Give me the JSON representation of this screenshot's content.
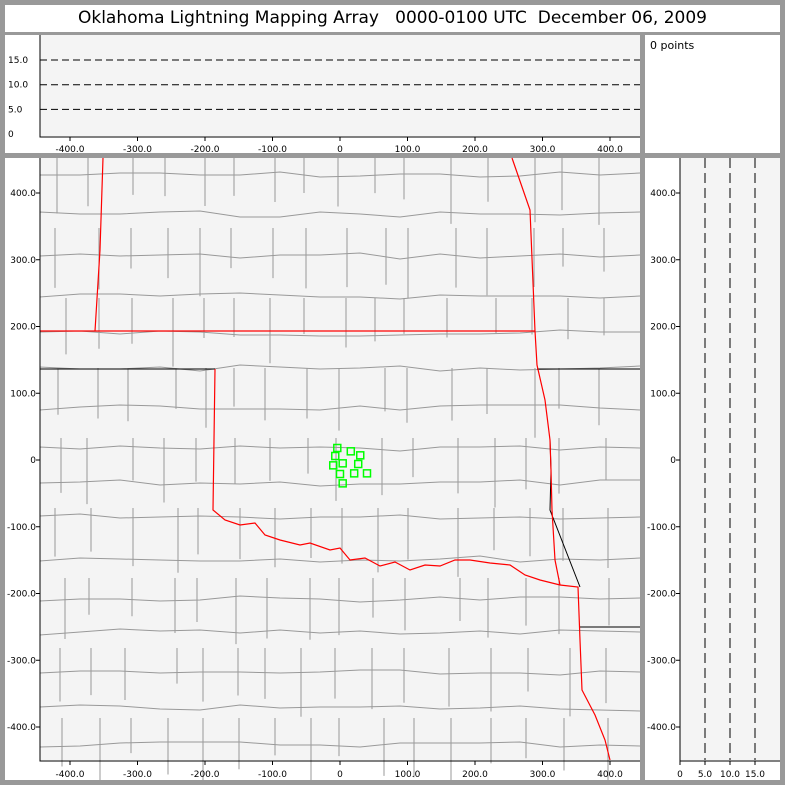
{
  "title": "Oklahoma Lightning Mapping Array   0000-0100 UTC  December 06, 2009",
  "legend": {
    "count_label": "0 points"
  },
  "colors": {
    "background": "#f4f4f4",
    "state_border": "#ff0000",
    "county": "#999999",
    "points": "#00ff00"
  },
  "chart_data": [
    {
      "type": "scatter",
      "title": "",
      "panel": "altitude-vs-east-west",
      "xlim": [
        -450,
        450
      ],
      "ylim": [
        0,
        20
      ],
      "x_ticks": [
        "-400.0",
        "-300.0",
        "-200.0",
        "-100.0",
        "0",
        "100.0",
        "200.0",
        "300.0",
        "400.0"
      ],
      "y_ticks": [
        "0",
        "5.0",
        "10.0",
        "15.0"
      ],
      "grid": "dashed at 5, 10, 15",
      "points": []
    },
    {
      "type": "scatter",
      "title": "",
      "panel": "plan-view-map",
      "xlim": [
        -450,
        450
      ],
      "ylim": [
        -450,
        450
      ],
      "x_ticks": [
        "-400.0",
        "-300.0",
        "-200.0",
        "-100.0",
        "0",
        "100.0",
        "200.0",
        "300.0",
        "400.0"
      ],
      "y_ticks": [
        "400.0",
        "300.0",
        "200.0",
        "100.0",
        "0",
        "-100.0",
        "-200.0",
        "-300.0",
        "-400.0"
      ],
      "marker": "hollow-square",
      "points": [
        [
          -4,
          18
        ],
        [
          -7,
          6
        ],
        [
          16,
          13
        ],
        [
          30,
          7
        ],
        [
          4,
          -5
        ],
        [
          -10,
          -8
        ],
        [
          27,
          -6
        ],
        [
          0,
          -21
        ],
        [
          21,
          -20
        ],
        [
          40,
          -20
        ],
        [
          4,
          -35
        ]
      ]
    },
    {
      "type": "scatter",
      "title": "",
      "panel": "north-south-vs-altitude",
      "xlim": [
        0,
        20
      ],
      "ylim": [
        -450,
        450
      ],
      "x_ticks": [
        "0",
        "5.0",
        "10.0",
        "15.0"
      ],
      "y_ticks": [
        "400.0",
        "300.0",
        "200.0",
        "100.0",
        "0",
        "-100.0",
        "-200.0",
        "-300.0",
        "-400.0"
      ],
      "grid": "dashed at 5, 10, 15",
      "points": []
    }
  ]
}
